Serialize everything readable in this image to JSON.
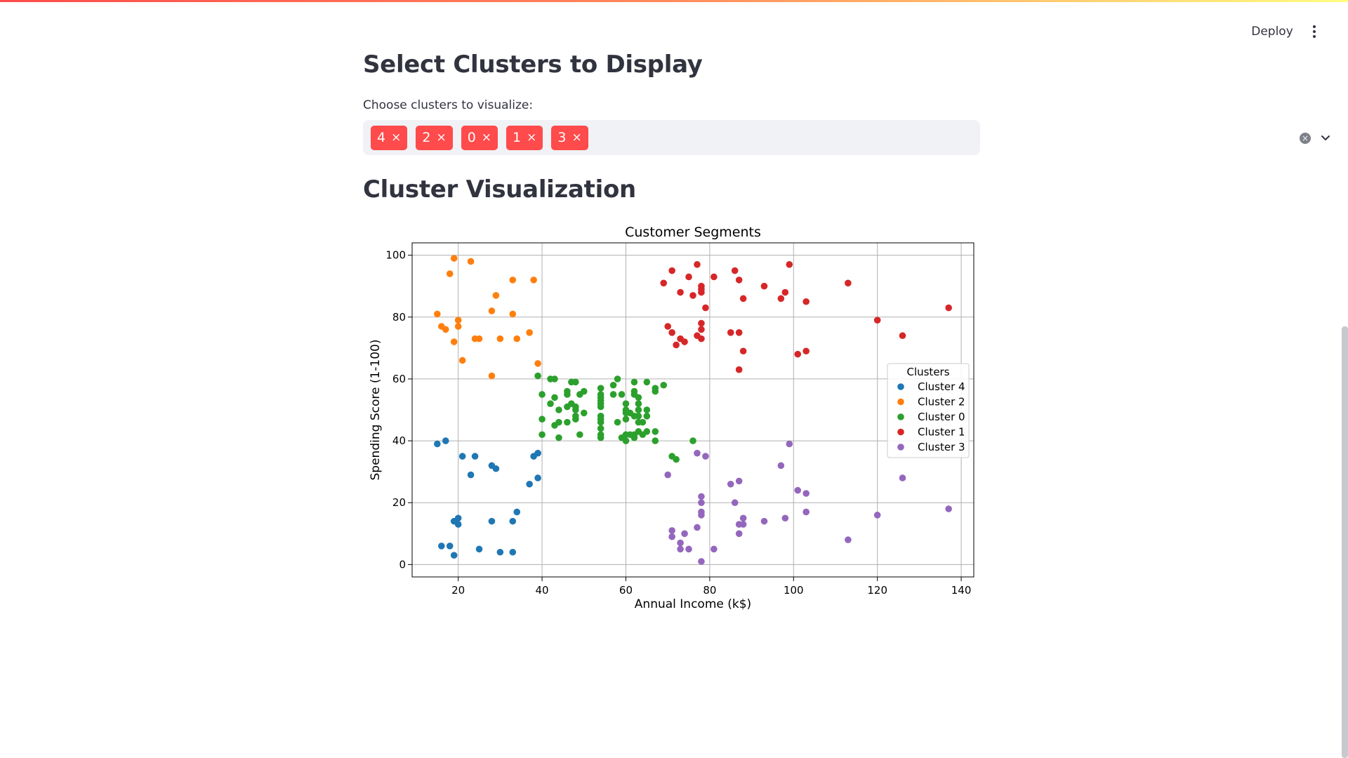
{
  "header": {
    "deploy_label": "Deploy"
  },
  "select_section": {
    "title": "Select Clusters to Display",
    "label": "Choose clusters to visualize:",
    "selected": [
      {
        "label": "4",
        "remove": "×"
      },
      {
        "label": "2",
        "remove": "×"
      },
      {
        "label": "0",
        "remove": "×"
      },
      {
        "label": "1",
        "remove": "×"
      },
      {
        "label": "3",
        "remove": "×"
      }
    ],
    "clear_glyph": "×"
  },
  "viz_section": {
    "title": "Cluster Visualization"
  },
  "colors": {
    "accent": "#ff4b4b",
    "cluster_4": "#1f77b4",
    "cluster_2": "#ff7f0e",
    "cluster_0": "#2ca02c",
    "cluster_1": "#d62728",
    "cluster_3": "#9467bd"
  },
  "chart_data": {
    "type": "scatter",
    "title": "Customer Segments",
    "xlabel": "Annual Income (k$)",
    "ylabel": "Spending Score (1-100)",
    "xlim": [
      9,
      143
    ],
    "ylim": [
      -4,
      104
    ],
    "xticks": [
      20,
      40,
      60,
      80,
      100,
      120,
      140
    ],
    "yticks": [
      0,
      20,
      40,
      60,
      80,
      100
    ],
    "grid": true,
    "legend_title": "Clusters",
    "legend_position": "center-right",
    "series": [
      {
        "name": "Cluster 4",
        "color": "#1f77b4",
        "points": [
          [
            15,
            39
          ],
          [
            16,
            6
          ],
          [
            17,
            40
          ],
          [
            18,
            6
          ],
          [
            19,
            3
          ],
          [
            19,
            14
          ],
          [
            20,
            15
          ],
          [
            20,
            13
          ],
          [
            21,
            35
          ],
          [
            23,
            29
          ],
          [
            24,
            35
          ],
          [
            25,
            5
          ],
          [
            28,
            14
          ],
          [
            28,
            32
          ],
          [
            29,
            31
          ],
          [
            30,
            4
          ],
          [
            33,
            4
          ],
          [
            33,
            14
          ],
          [
            34,
            17
          ],
          [
            37,
            26
          ],
          [
            38,
            35
          ],
          [
            39,
            36
          ],
          [
            39,
            28
          ]
        ]
      },
      {
        "name": "Cluster 2",
        "color": "#ff7f0e",
        "points": [
          [
            15,
            81
          ],
          [
            16,
            77
          ],
          [
            17,
            76
          ],
          [
            18,
            94
          ],
          [
            19,
            72
          ],
          [
            19,
            99
          ],
          [
            20,
            77
          ],
          [
            20,
            79
          ],
          [
            21,
            66
          ],
          [
            23,
            98
          ],
          [
            24,
            73
          ],
          [
            25,
            73
          ],
          [
            28,
            82
          ],
          [
            28,
            61
          ],
          [
            29,
            87
          ],
          [
            30,
            73
          ],
          [
            33,
            92
          ],
          [
            33,
            81
          ],
          [
            34,
            73
          ],
          [
            37,
            75
          ],
          [
            38,
            92
          ],
          [
            39,
            65
          ]
        ]
      },
      {
        "name": "Cluster 0",
        "color": "#2ca02c",
        "points": [
          [
            39,
            61
          ],
          [
            40,
            55
          ],
          [
            40,
            47
          ],
          [
            40,
            42
          ],
          [
            42,
            52
          ],
          [
            42,
            60
          ],
          [
            43,
            60
          ],
          [
            43,
            54
          ],
          [
            43,
            45
          ],
          [
            44,
            50
          ],
          [
            44,
            41
          ],
          [
            44,
            46
          ],
          [
            46,
            51
          ],
          [
            46,
            46
          ],
          [
            46,
            56
          ],
          [
            46,
            55
          ],
          [
            47,
            52
          ],
          [
            47,
            59
          ],
          [
            48,
            51
          ],
          [
            48,
            59
          ],
          [
            48,
            50
          ],
          [
            48,
            48
          ],
          [
            48,
            47
          ],
          [
            49,
            55
          ],
          [
            49,
            42
          ],
          [
            50,
            49
          ],
          [
            50,
            56
          ],
          [
            54,
            47
          ],
          [
            54,
            54
          ],
          [
            54,
            53
          ],
          [
            54,
            48
          ],
          [
            54,
            52
          ],
          [
            54,
            42
          ],
          [
            54,
            51
          ],
          [
            54,
            55
          ],
          [
            54,
            41
          ],
          [
            54,
            44
          ],
          [
            54,
            57
          ],
          [
            54,
            46
          ],
          [
            57,
            58
          ],
          [
            57,
            55
          ],
          [
            58,
            60
          ],
          [
            58,
            46
          ],
          [
            59,
            55
          ],
          [
            59,
            41
          ],
          [
            60,
            49
          ],
          [
            60,
            40
          ],
          [
            60,
            42
          ],
          [
            60,
            52
          ],
          [
            60,
            47
          ],
          [
            60,
            50
          ],
          [
            61,
            42
          ],
          [
            61,
            49
          ],
          [
            62,
            41
          ],
          [
            62,
            48
          ],
          [
            62,
            59
          ],
          [
            62,
            55
          ],
          [
            62,
            56
          ],
          [
            62,
            42
          ],
          [
            63,
            50
          ],
          [
            63,
            46
          ],
          [
            63,
            43
          ],
          [
            63,
            48
          ],
          [
            63,
            52
          ],
          [
            63,
            54
          ],
          [
            64,
            42
          ],
          [
            64,
            46
          ],
          [
            65,
            48
          ],
          [
            65,
            50
          ],
          [
            65,
            43
          ],
          [
            65,
            59
          ],
          [
            67,
            43
          ],
          [
            67,
            57
          ],
          [
            67,
            56
          ],
          [
            67,
            40
          ],
          [
            69,
            58
          ],
          [
            71,
            35
          ],
          [
            72,
            34
          ],
          [
            76,
            40
          ]
        ]
      },
      {
        "name": "Cluster 1",
        "color": "#d62728",
        "points": [
          [
            69,
            91
          ],
          [
            70,
            77
          ],
          [
            71,
            95
          ],
          [
            71,
            75
          ],
          [
            72,
            71
          ],
          [
            73,
            88
          ],
          [
            73,
            73
          ],
          [
            74,
            72
          ],
          [
            75,
            93
          ],
          [
            76,
            87
          ],
          [
            77,
            97
          ],
          [
            77,
            74
          ],
          [
            78,
            90
          ],
          [
            78,
            88
          ],
          [
            78,
            76
          ],
          [
            78,
            89
          ],
          [
            78,
            78
          ],
          [
            78,
            73
          ],
          [
            79,
            83
          ],
          [
            81,
            93
          ],
          [
            85,
            75
          ],
          [
            86,
            95
          ],
          [
            87,
            63
          ],
          [
            87,
            75
          ],
          [
            87,
            92
          ],
          [
            88,
            86
          ],
          [
            88,
            69
          ],
          [
            93,
            90
          ],
          [
            97,
            86
          ],
          [
            98,
            88
          ],
          [
            99,
            97
          ],
          [
            101,
            68
          ],
          [
            103,
            85
          ],
          [
            103,
            69
          ],
          [
            113,
            91
          ],
          [
            120,
            79
          ],
          [
            126,
            74
          ],
          [
            137,
            83
          ]
        ]
      },
      {
        "name": "Cluster 3",
        "color": "#9467bd",
        "points": [
          [
            70,
            29
          ],
          [
            71,
            11
          ],
          [
            71,
            9
          ],
          [
            73,
            5
          ],
          [
            73,
            7
          ],
          [
            74,
            10
          ],
          [
            75,
            5
          ],
          [
            77,
            12
          ],
          [
            77,
            36
          ],
          [
            78,
            22
          ],
          [
            78,
            17
          ],
          [
            78,
            20
          ],
          [
            78,
            16
          ],
          [
            78,
            1
          ],
          [
            79,
            35
          ],
          [
            81,
            5
          ],
          [
            85,
            26
          ],
          [
            86,
            20
          ],
          [
            87,
            27
          ],
          [
            87,
            13
          ],
          [
            87,
            10
          ],
          [
            88,
            13
          ],
          [
            88,
            15
          ],
          [
            93,
            14
          ],
          [
            97,
            32
          ],
          [
            98,
            15
          ],
          [
            99,
            39
          ],
          [
            101,
            24
          ],
          [
            103,
            17
          ],
          [
            103,
            23
          ],
          [
            113,
            8
          ],
          [
            120,
            16
          ],
          [
            126,
            28
          ],
          [
            137,
            18
          ]
        ]
      }
    ]
  }
}
